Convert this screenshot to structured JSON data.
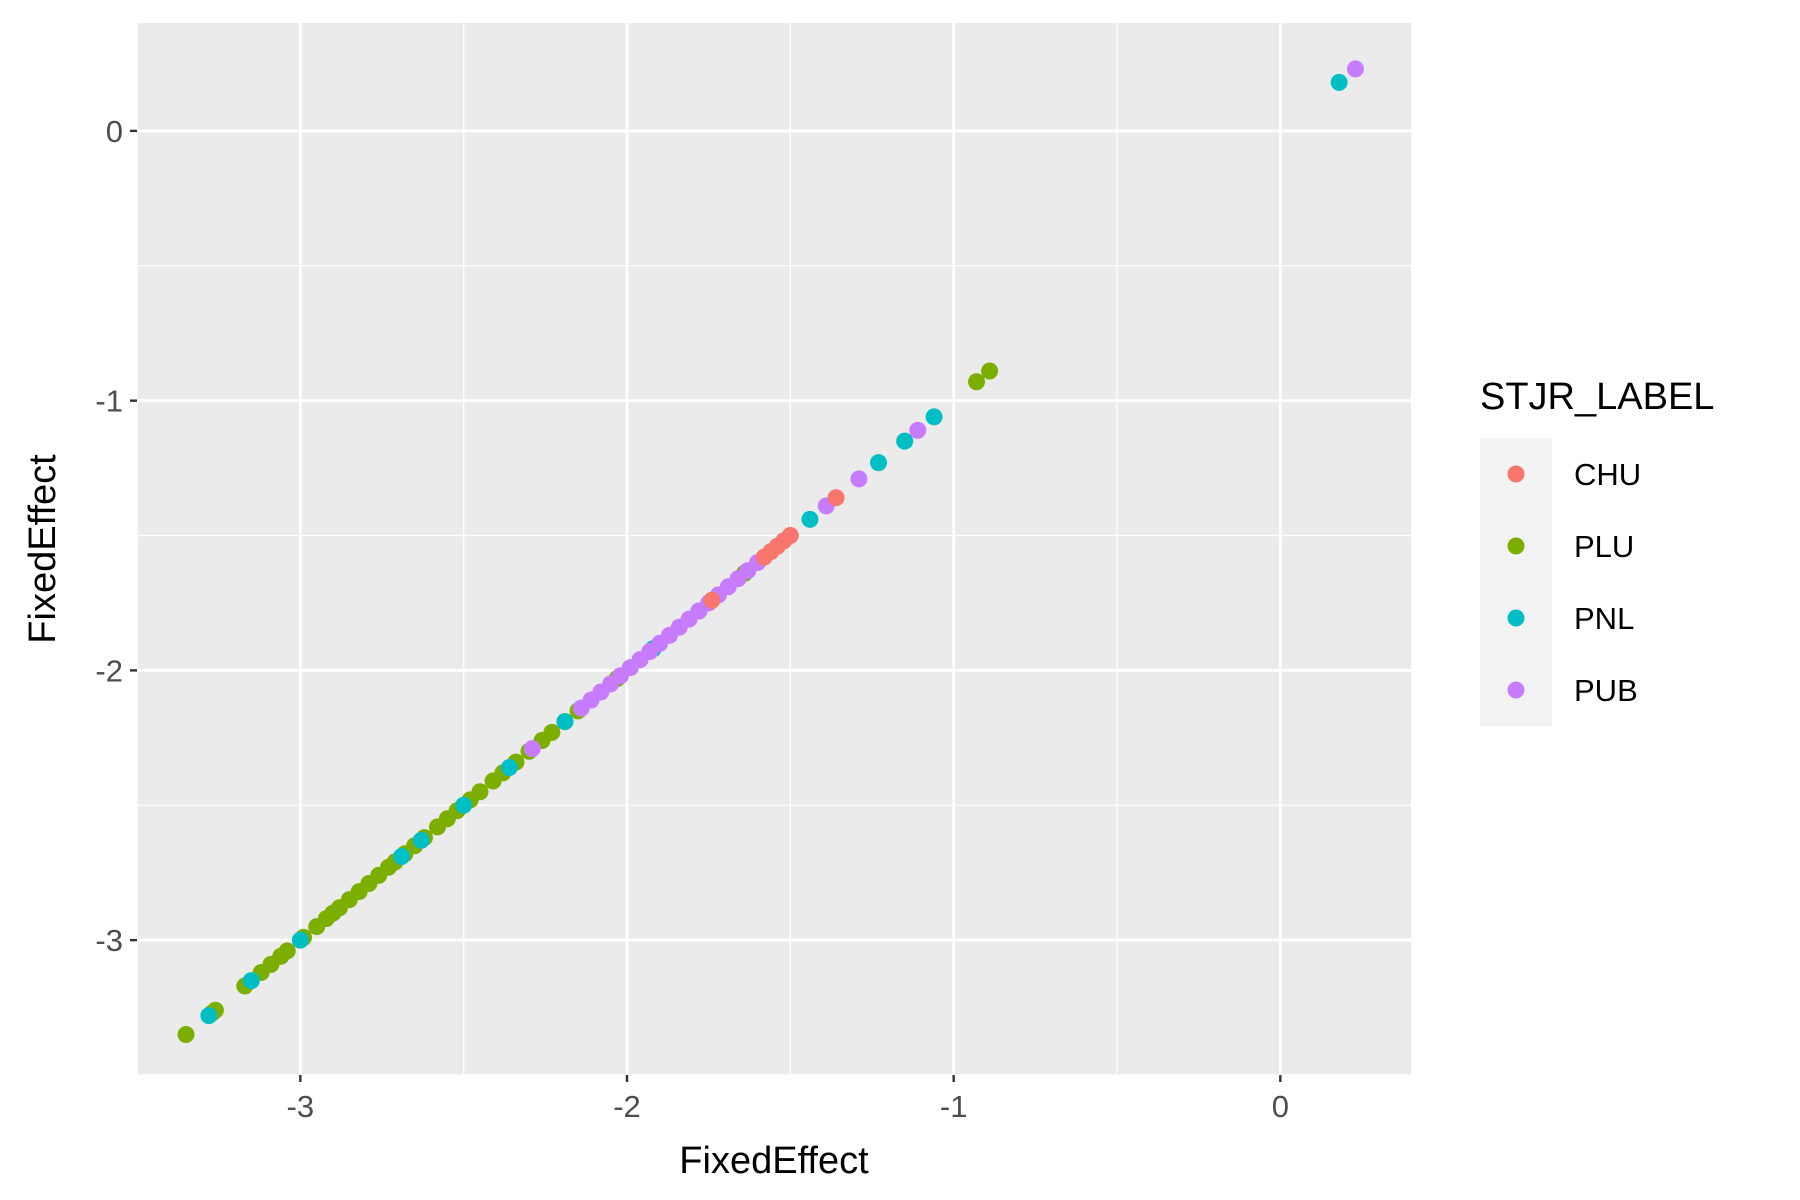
{
  "chart_data": {
    "type": "scatter",
    "xlabel": "FixedEffect",
    "ylabel": "FixedEffect",
    "xlim": [
      -3.5,
      0.4
    ],
    "ylim": [
      -3.5,
      0.4
    ],
    "x_ticks": [
      -3,
      -2,
      -1,
      0
    ],
    "y_ticks": [
      0,
      -1,
      -2,
      -3
    ],
    "x_tick_labels": [
      "-3",
      "-2",
      "-1",
      "0"
    ],
    "y_tick_labels": [
      "0",
      "-1",
      "-2",
      "-3"
    ],
    "grid": true,
    "legend_position": "right",
    "legend": {
      "title": "STJR_LABEL",
      "entries": [
        {
          "name": "CHU",
          "color": "#F8766D"
        },
        {
          "name": "PLU",
          "color": "#7CAE00"
        },
        {
          "name": "PNL",
          "color": "#00BFC4"
        },
        {
          "name": "PUB",
          "color": "#C77CFF"
        }
      ]
    },
    "colors": {
      "panel_background": "#EBEBEB",
      "grid_line": "#FFFFFF",
      "legend_key_background": "#F2F2F2"
    },
    "series": [
      {
        "name": "PLU",
        "color": "#7CAE00",
        "x": [
          -3.35,
          -3.27,
          -3.26,
          -3.17,
          -3.12,
          -3.09,
          -3.06,
          -3.04,
          -2.99,
          -2.95,
          -2.92,
          -2.9,
          -2.88,
          -2.85,
          -2.82,
          -2.79,
          -2.76,
          -2.73,
          -2.71,
          -2.68,
          -2.65,
          -2.62,
          -2.58,
          -2.55,
          -2.52,
          -2.48,
          -2.45,
          -2.41,
          -2.38,
          -2.34,
          -2.3,
          -2.26,
          -2.23,
          -2.19,
          -2.15,
          -2.03,
          -1.64,
          -0.93,
          -0.89
        ],
        "y": [
          -3.35,
          -3.27,
          -3.26,
          -3.17,
          -3.12,
          -3.09,
          -3.06,
          -3.04,
          -2.99,
          -2.95,
          -2.92,
          -2.9,
          -2.88,
          -2.85,
          -2.82,
          -2.79,
          -2.76,
          -2.73,
          -2.71,
          -2.68,
          -2.65,
          -2.62,
          -2.58,
          -2.55,
          -2.52,
          -2.48,
          -2.45,
          -2.41,
          -2.38,
          -2.34,
          -2.3,
          -2.26,
          -2.23,
          -2.19,
          -2.15,
          -2.03,
          -1.64,
          -0.93,
          -0.89
        ]
      },
      {
        "name": "PNL",
        "color": "#00BFC4",
        "x": [
          -3.28,
          -3.15,
          -3.0,
          -2.69,
          -2.63,
          -2.5,
          -2.36,
          -2.19,
          -1.92,
          -1.78,
          -1.44,
          -1.23,
          -1.15,
          -1.06,
          0.18
        ],
        "y": [
          -3.28,
          -3.15,
          -3.0,
          -2.69,
          -2.63,
          -2.5,
          -2.36,
          -2.19,
          -1.92,
          -1.78,
          -1.44,
          -1.23,
          -1.15,
          -1.06,
          0.18
        ]
      },
      {
        "name": "PUB",
        "color": "#C77CFF",
        "x": [
          -2.29,
          -2.14,
          -2.11,
          -2.08,
          -2.05,
          -2.02,
          -1.99,
          -1.96,
          -1.93,
          -1.9,
          -1.87,
          -1.84,
          -1.81,
          -1.78,
          -1.75,
          -1.72,
          -1.69,
          -1.66,
          -1.63,
          -1.6,
          -1.39,
          -1.29,
          -1.11,
          0.23
        ],
        "y": [
          -2.29,
          -2.14,
          -2.11,
          -2.08,
          -2.05,
          -2.02,
          -1.99,
          -1.96,
          -1.93,
          -1.9,
          -1.87,
          -1.84,
          -1.81,
          -1.78,
          -1.75,
          -1.72,
          -1.69,
          -1.66,
          -1.63,
          -1.6,
          -1.39,
          -1.29,
          -1.11,
          0.23
        ]
      },
      {
        "name": "CHU",
        "color": "#F8766D",
        "x": [
          -1.74,
          -1.58,
          -1.56,
          -1.54,
          -1.52,
          -1.5,
          -1.36
        ],
        "y": [
          -1.74,
          -1.58,
          -1.56,
          -1.54,
          -1.52,
          -1.5,
          -1.36
        ]
      }
    ]
  }
}
